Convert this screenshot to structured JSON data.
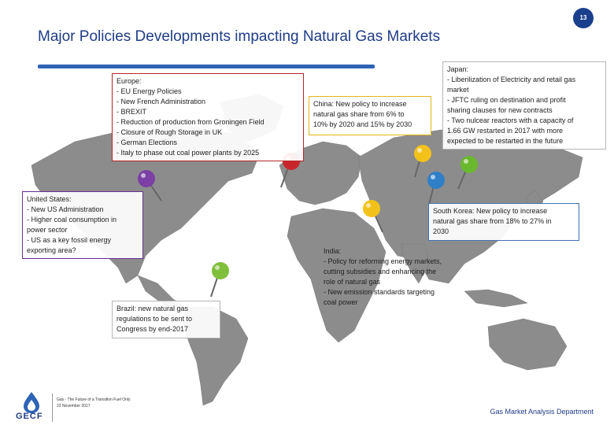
{
  "title": "Major Policies Developments impacting Natural Gas Markets",
  "page_number": "13",
  "europe": {
    "lines": [
      "Europe:",
      "- EU Energy Policies",
      "- New French Administration",
      "- BREXIT",
      "- Reduction of production from Groningen Field",
      "- Closure of Rough Storage in UK",
      "- German Elections",
      "- Italy to phase out coal power plants by 2025"
    ]
  },
  "united_states": {
    "lines": [
      "United States:",
      "- New US Administration",
      "- Higher coal consumption in",
      "   power sector",
      "- US as a key fossil energy",
      "  exporting area?"
    ]
  },
  "brazil": {
    "lines": [
      "Brazil:   new   natural   gas",
      "regulations  to  be  sent  to",
      "Congress by end-2017"
    ]
  },
  "china": {
    "lines": [
      "China: New policy to increase",
      "natural gas share from 6% to",
      "10% by 2020 and 15% by 2030"
    ]
  },
  "india": {
    "lines": [
      "India:",
      "-   Policy for reforming energy markets,",
      "     cutting subsidies and enhancing the",
      "     role of natural gas",
      "-   New emission standards targeting",
      "     coal power"
    ]
  },
  "japan": {
    "lines": [
      "Japan:",
      "- Liberilization of Electricity and retail gas",
      "  market",
      "-  JFTC  ruling  on  destination  and  profit",
      "  sharing clauses for new contracts",
      "- Two nulcear reactors with a capacity of",
      "  1.66 GW restarted in 2017 with more",
      "  expected to be restarted in the future"
    ]
  },
  "south_korea": {
    "lines": [
      "South Korea: New policy to increase",
      "natural gas share from 18% to 27% in",
      "2030"
    ]
  },
  "footer": {
    "event_line1": "Gas - The Future of a Transition Fuel Only",
    "event_line2": "23 November 2017",
    "department": "Gas Market Analysis Department",
    "logo_text": "GECF"
  },
  "colors": {
    "title": "#1f3c88",
    "europe_pin": "#c8262c",
    "us_pin": "#7b3fa5",
    "brazil_pin": "#7fbf3a",
    "china_pin": "#f2c21b",
    "india_pin": "#f2c21b",
    "japan_pin": "#6ab82e",
    "korea_pin": "#2f7fc6"
  }
}
